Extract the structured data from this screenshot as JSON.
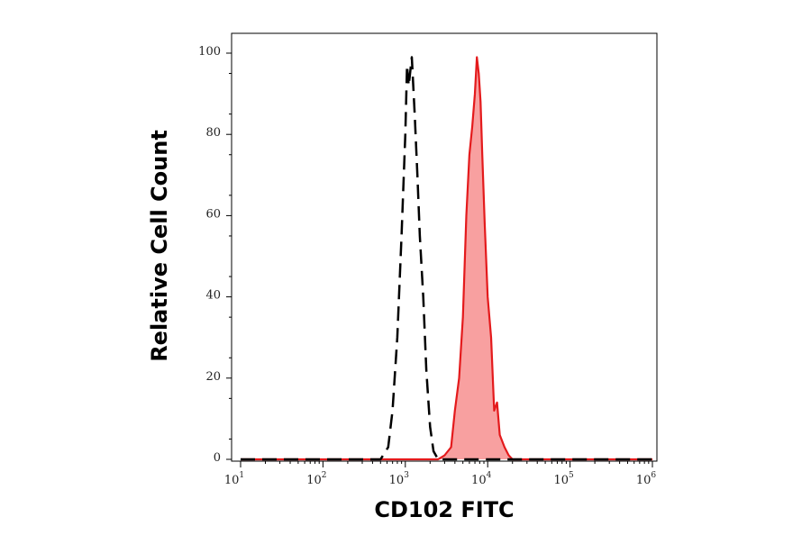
{
  "chart_data": {
    "type": "area",
    "xlabel": "CD102 FITC",
    "ylabel": "Relative Cell Count",
    "x_scale": "log",
    "xlim": [
      10,
      1000000
    ],
    "ylim": [
      0,
      100
    ],
    "x_ticks": [
      {
        "base": "10",
        "exp": "1",
        "value": 10
      },
      {
        "base": "10",
        "exp": "2",
        "value": 100
      },
      {
        "base": "10",
        "exp": "3",
        "value": 1000
      },
      {
        "base": "10",
        "exp": "4",
        "value": 10000
      },
      {
        "base": "10",
        "exp": "5",
        "value": 100000
      },
      {
        "base": "10",
        "exp": "6",
        "value": 1000000
      }
    ],
    "y_ticks": [
      "0",
      "20",
      "40",
      "60",
      "80",
      "100"
    ],
    "grid": false,
    "series": [
      {
        "style": "dashed",
        "color": "#000000",
        "fill": false,
        "x": [
          10,
          500,
          620,
          700,
          800,
          900,
          1000,
          1050,
          1100,
          1200,
          1300,
          1400,
          1500,
          1650,
          1800,
          2000,
          2200,
          2500,
          1000000
        ],
        "y": [
          0,
          0,
          3,
          12,
          30,
          55,
          80,
          97,
          92,
          99,
          85,
          70,
          55,
          40,
          22,
          8,
          2,
          0,
          0
        ]
      },
      {
        "style": "solid",
        "color": "#e41a1c",
        "fill": true,
        "fill_color": "#f8a0a0",
        "x": [
          10,
          2500,
          3000,
          3600,
          4000,
          4500,
          5000,
          5500,
          6000,
          6500,
          7000,
          7400,
          7800,
          8200,
          8600,
          9200,
          10000,
          11000,
          12000,
          13000,
          14000,
          16000,
          18000,
          20000,
          1000000
        ],
        "y": [
          0,
          0,
          1,
          3,
          12,
          20,
          35,
          60,
          75,
          82,
          90,
          99,
          95,
          88,
          75,
          58,
          40,
          30,
          12,
          14,
          6,
          3,
          1,
          0,
          0
        ]
      }
    ]
  }
}
